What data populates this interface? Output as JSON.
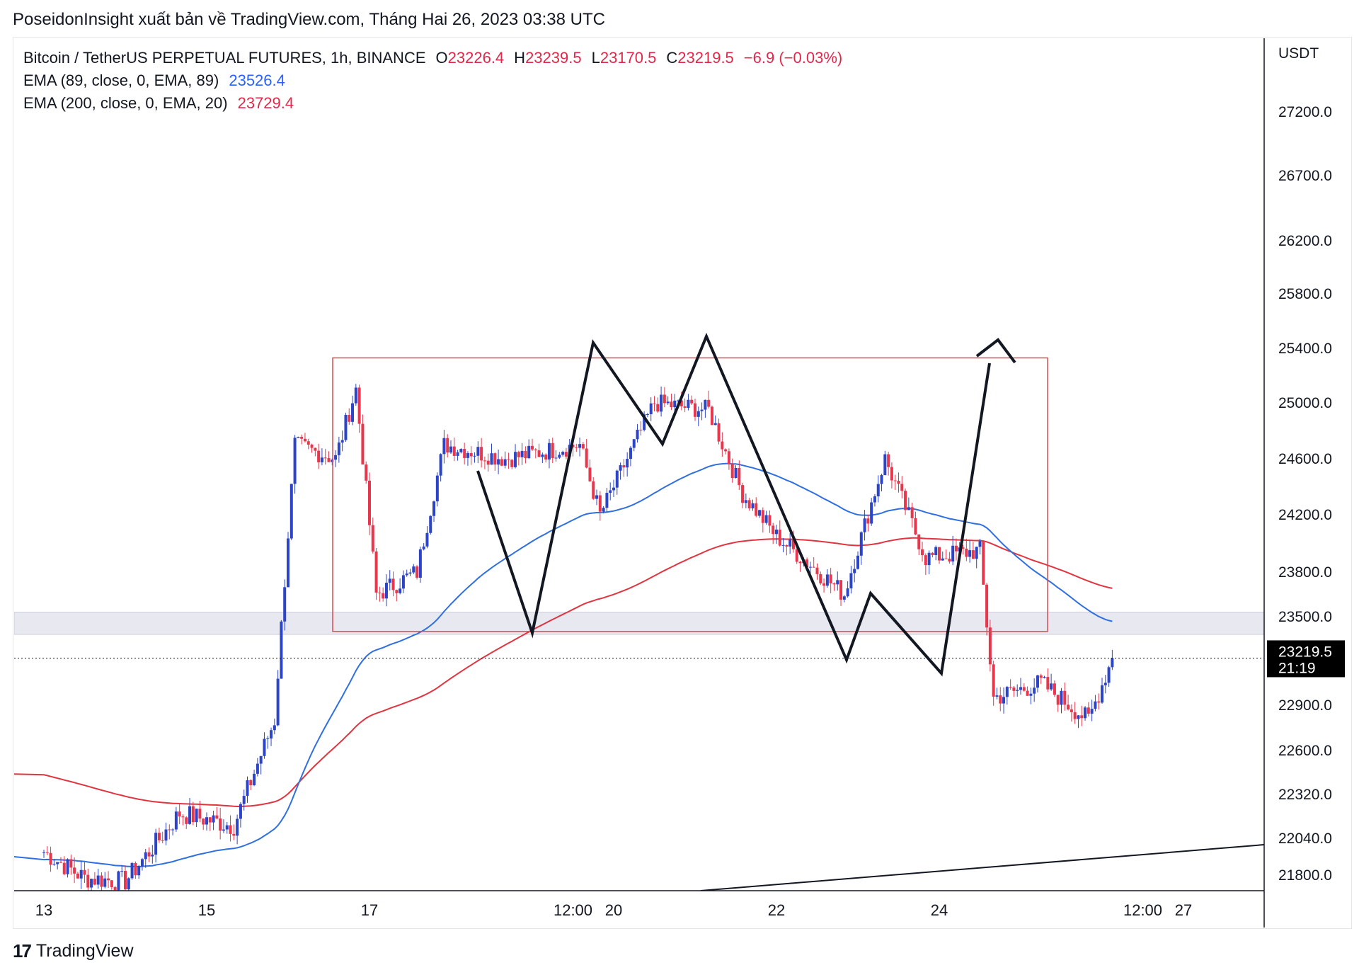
{
  "header": {
    "publisher_line": "PoseidonInsight xuất bản về TradingView.com, Tháng Hai 26, 2023 03:38 UTC"
  },
  "legend": {
    "symbol": "Bitcoin / TetherUS PERPETUAL FUTURES, 1h, BINANCE",
    "open_label": "O",
    "open": "23226.4",
    "high_label": "H",
    "high": "23239.5",
    "low_label": "L",
    "low": "23170.5",
    "close_label": "C",
    "close": "23219.5",
    "change": "−6.9 (−0.03%)",
    "ema1_label": "EMA (89, close, 0, EMA, 89)",
    "ema1_value": "23526.4",
    "ema2_label": "EMA (200, close, 0, EMA, 20)",
    "ema2_value": "23729.4"
  },
  "footer": {
    "brand": "TradingView",
    "logo_glyph": "17"
  },
  "colors": {
    "up": "#2b44c8",
    "down": "#e8364c",
    "ema89": "#2f6fe0",
    "ema200": "#e03540",
    "box": "#d94b57"
  },
  "chart_data": {
    "type": "candlestick",
    "currency": "USDT",
    "x_ticks": [
      "13",
      "15",
      "17",
      "12:00",
      "20",
      "22",
      "24",
      "12:00",
      "27"
    ],
    "y_ticks": [
      "27200.0",
      "26700.0",
      "26200.0",
      "25800.0",
      "25400.0",
      "25000.0",
      "24600.0",
      "24200.0",
      "23800.0",
      "23500.0",
      "22900.0",
      "22600.0",
      "22320.0",
      "22040.0",
      "21800.0"
    ],
    "last_price": "23219.5",
    "countdown": "21:19",
    "ohlc_keypoints": [
      {
        "t": "Feb 13 00:00",
        "p": 21950
      },
      {
        "t": "Feb 13 12:00",
        "p": 21780
      },
      {
        "t": "Feb 14 00:00",
        "p": 21760
      },
      {
        "t": "Feb 14 16:00",
        "p": 22200
      },
      {
        "t": "Feb 15 08:00",
        "p": 22120
      },
      {
        "t": "Feb 15 20:00",
        "p": 22800
      },
      {
        "t": "Feb 16 02:00",
        "p": 24700
      },
      {
        "t": "Feb 16 14:00",
        "p": 24600
      },
      {
        "t": "Feb 16 20:00",
        "p": 25100
      },
      {
        "t": "Feb 17 02:00",
        "p": 23650
      },
      {
        "t": "Feb 17 14:00",
        "p": 23800
      },
      {
        "t": "Feb 17 22:00",
        "p": 24700
      },
      {
        "t": "Feb 18 16:00",
        "p": 24600
      },
      {
        "t": "Feb 19 14:00",
        "p": 24700
      },
      {
        "t": "Feb 19 20:00",
        "p": 24200
      },
      {
        "t": "Feb 20 12:00",
        "p": 25000
      },
      {
        "t": "Feb 21 04:00",
        "p": 24950
      },
      {
        "t": "Feb 21 14:00",
        "p": 24350
      },
      {
        "t": "Feb 22 00:00",
        "p": 24050
      },
      {
        "t": "Feb 22 20:00",
        "p": 23650
      },
      {
        "t": "Feb 23 08:00",
        "p": 24600
      },
      {
        "t": "Feb 23 20:00",
        "p": 23900
      },
      {
        "t": "Feb 24 12:00",
        "p": 23950
      },
      {
        "t": "Feb 24 16:00",
        "p": 22950
      },
      {
        "t": "Feb 25 06:00",
        "p": 23050
      },
      {
        "t": "Feb 25 20:00",
        "p": 22800
      },
      {
        "t": "Feb 26 03:00",
        "p": 23220
      }
    ]
  }
}
